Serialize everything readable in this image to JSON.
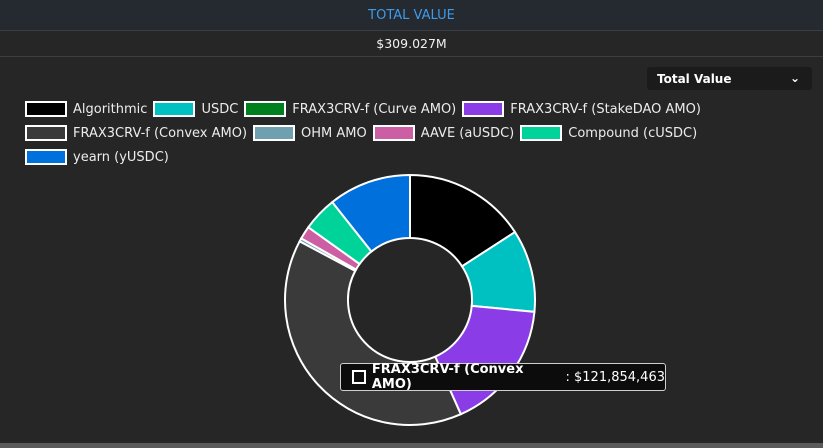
{
  "header": {
    "title": "TOTAL VALUE",
    "total": "$309.027M"
  },
  "selector": {
    "value": "Total Value",
    "icon": "chevron-down-icon"
  },
  "chart_data": {
    "type": "pie",
    "variant": "doughnut",
    "legend_position": "top-left",
    "unit": "USD (millions, estimated except tooltip value)",
    "categories": [
      "Algorithmic",
      "USDC",
      "FRAX3CRV-f (Curve AMO)",
      "FRAX3CRV-f (StakeDAO AMO)",
      "FRAX3CRV-f (Convex AMO)",
      "OHM AMO",
      "AAVE (aUSDC)",
      "Compound (cUSDC)",
      "yearn (yUSDC)"
    ],
    "values": [
      49.0,
      32.9,
      0,
      52.0,
      121.854463,
      1.3,
      5.2,
      13.7,
      33.0
    ],
    "colors": [
      "#000000",
      "#00c1c1",
      "#007f1e",
      "#8a3de6",
      "#3a3a3a",
      "#70a0b0",
      "#cc5fa3",
      "#00d39a",
      "#0070dc"
    ],
    "tooltip": {
      "label": "FRAX3CRV-f (Convex AMO)",
      "value": "$121,854,463"
    }
  }
}
